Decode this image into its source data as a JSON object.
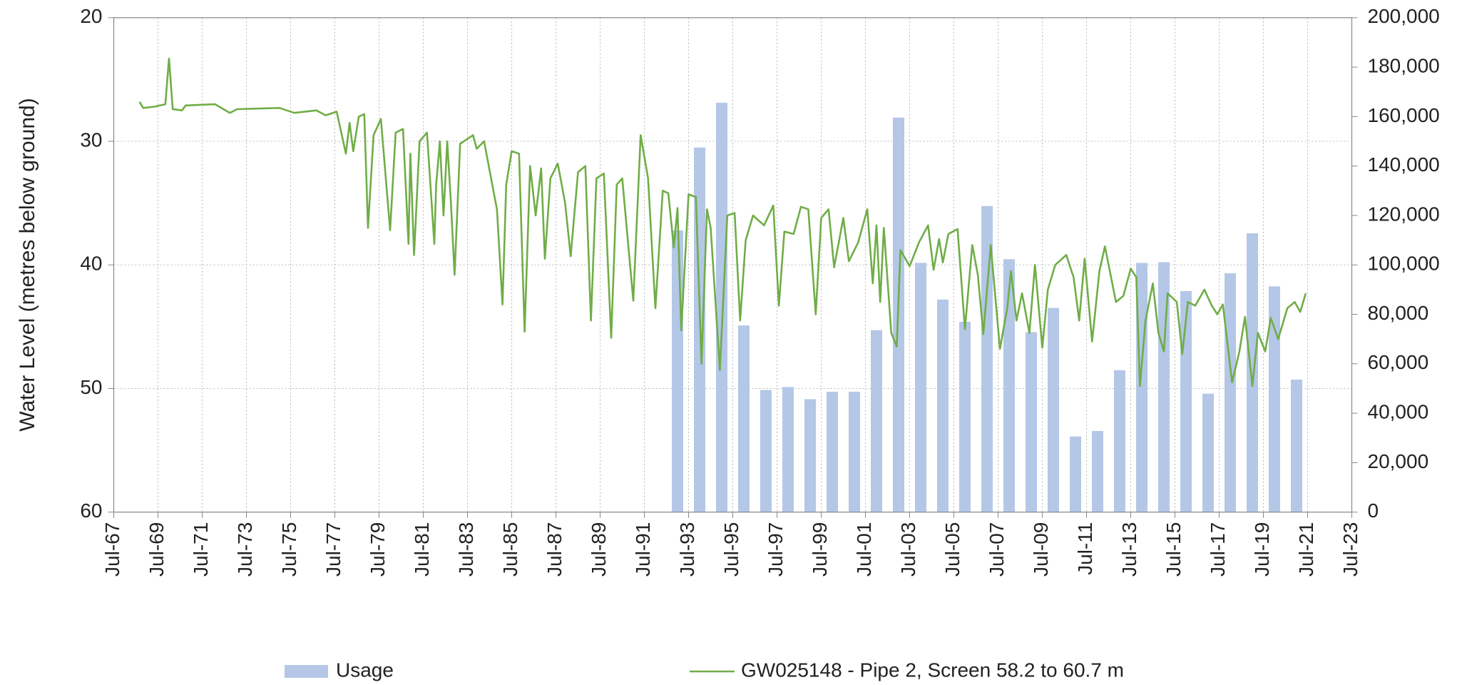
{
  "chart_data": {
    "type": "combo",
    "y_label": "Water Level (metres below ground)",
    "xlim": [
      "1967-07",
      "2023-07"
    ],
    "xticks": [
      {
        "value": "1967-07",
        "label": "Jul-67"
      },
      {
        "value": "1969-07",
        "label": "Jul-69"
      },
      {
        "value": "1971-07",
        "label": "Jul-71"
      },
      {
        "value": "1973-07",
        "label": "Jul-73"
      },
      {
        "value": "1975-07",
        "label": "Jul-75"
      },
      {
        "value": "1977-07",
        "label": "Jul-77"
      },
      {
        "value": "1979-07",
        "label": "Jul-79"
      },
      {
        "value": "1981-07",
        "label": "Jul-81"
      },
      {
        "value": "1983-07",
        "label": "Jul-83"
      },
      {
        "value": "1985-07",
        "label": "Jul-85"
      },
      {
        "value": "1987-07",
        "label": "Jul-87"
      },
      {
        "value": "1989-07",
        "label": "Jul-89"
      },
      {
        "value": "1991-07",
        "label": "Jul-91"
      },
      {
        "value": "1993-07",
        "label": "Jul-93"
      },
      {
        "value": "1995-07",
        "label": "Jul-95"
      },
      {
        "value": "1997-07",
        "label": "Jul-97"
      },
      {
        "value": "1999-07",
        "label": "Jul-99"
      },
      {
        "value": "2001-07",
        "label": "Jul-01"
      },
      {
        "value": "2003-07",
        "label": "Jul-03"
      },
      {
        "value": "2005-07",
        "label": "Jul-05"
      },
      {
        "value": "2007-07",
        "label": "Jul-07"
      },
      {
        "value": "2009-07",
        "label": "Jul-09"
      },
      {
        "value": "2011-07",
        "label": "Jul-11"
      },
      {
        "value": "2013-07",
        "label": "Jul-13"
      },
      {
        "value": "2015-07",
        "label": "Jul-15"
      },
      {
        "value": "2017-07",
        "label": "Jul-17"
      },
      {
        "value": "2019-07",
        "label": "Jul-19"
      },
      {
        "value": "2021-07",
        "label": "Jul-21"
      },
      {
        "value": "2023-07",
        "label": "Jul-23"
      }
    ],
    "ylim": [
      20,
      60
    ],
    "y_reversed": true,
    "yticks": [
      20,
      30,
      40,
      50,
      60
    ],
    "y2lim": [
      0,
      200000
    ],
    "y2ticks": [
      0,
      {
        "value": 20000,
        "label": "20,000"
      },
      {
        "value": 40000,
        "label": "40,000"
      },
      {
        "value": 60000,
        "label": "60,000"
      },
      {
        "value": 80000,
        "label": "80,000"
      },
      {
        "value": 100000,
        "label": "100,000"
      },
      {
        "value": 120000,
        "label": "120,000"
      },
      {
        "value": 140000,
        "label": "140,000"
      },
      {
        "value": 160000,
        "label": "160,000"
      },
      {
        "value": 180000,
        "label": "180,000"
      },
      {
        "value": 200000,
        "label": "200,000"
      }
    ],
    "grid": true,
    "legend": "bottom",
    "series": [
      {
        "name": "Usage",
        "type": "bar",
        "axis": "y2",
        "color": "#b4c7e7",
        "x": [
          "1993-01",
          "1994-01",
          "1995-01",
          "1996-01",
          "1997-01",
          "1998-01",
          "1999-01",
          "2000-01",
          "2001-01",
          "2002-01",
          "2003-01",
          "2004-01",
          "2005-01",
          "2006-01",
          "2007-01",
          "2008-01",
          "2009-01",
          "2010-01",
          "2011-01",
          "2012-01",
          "2013-01",
          "2014-01",
          "2015-01",
          "2016-01",
          "2017-01",
          "2018-01",
          "2019-01",
          "2020-01",
          "2021-01"
        ],
        "values": [
          114000,
          147500,
          165600,
          75500,
          49400,
          50600,
          45700,
          48700,
          48700,
          73600,
          159600,
          100800,
          86000,
          77000,
          123800,
          102300,
          72800,
          82600,
          30600,
          32800,
          57400,
          100800,
          101100,
          89400,
          47900,
          96600,
          112800,
          91300,
          53600
        ]
      },
      {
        "name": "GW025148 - Pipe 2, Screen 58.2 to 60.7 m",
        "type": "line",
        "axis": "y",
        "color": "#70ad47",
        "x": [
          "1968-09",
          "1968-11",
          "1969-05",
          "1969-11",
          "1970-01",
          "1970-03",
          "1970-08",
          "1970-10",
          "1972-02",
          "1972-10",
          "1973-02",
          "1975-01",
          "1975-09",
          "1976-09",
          "1977-02",
          "1977-08",
          "1978-01",
          "1978-03",
          "1978-05",
          "1978-08",
          "1978-11",
          "1979-01",
          "1979-04",
          "1979-08",
          "1980-01",
          "1980-04",
          "1980-08",
          "1980-11",
          "1980-12",
          "1981-02",
          "1981-05",
          "1981-09",
          "1982-01",
          "1982-02",
          "1982-04",
          "1982-06",
          "1982-08",
          "1982-10",
          "1982-12",
          "1983-03",
          "1983-10",
          "1983-12",
          "1984-04",
          "1984-11",
          "1985-02",
          "1985-04",
          "1985-07",
          "1985-11",
          "1986-02",
          "1986-05",
          "1986-08",
          "1986-11",
          "1987-01",
          "1987-04",
          "1987-08",
          "1987-12",
          "1988-03",
          "1988-07",
          "1988-11",
          "1989-02",
          "1989-05",
          "1989-09",
          "1990-01",
          "1990-04",
          "1990-07",
          "1991-01",
          "1991-05",
          "1991-09",
          "1992-01",
          "1992-05",
          "1992-08",
          "1992-11",
          "1993-01",
          "1993-03",
          "1993-07",
          "1993-11",
          "1994-02",
          "1994-05",
          "1994-07",
          "1994-12",
          "1995-04",
          "1995-08",
          "1995-11",
          "1996-02",
          "1996-06",
          "1996-12",
          "1997-05",
          "1997-08",
          "1997-11",
          "1998-04",
          "1998-08",
          "1998-12",
          "1999-04",
          "1999-07",
          "1999-11",
          "2000-02",
          "2000-07",
          "2000-10",
          "2001-03",
          "2001-08",
          "2001-11",
          "2002-01",
          "2002-03",
          "2002-05",
          "2002-09",
          "2002-12",
          "2003-02",
          "2003-07",
          "2003-12",
          "2004-05",
          "2004-08",
          "2004-11",
          "2005-01",
          "2005-04",
          "2005-09",
          "2006-01",
          "2006-05",
          "2006-08",
          "2006-11",
          "2007-03",
          "2007-08",
          "2007-12",
          "2008-02",
          "2008-05",
          "2008-08",
          "2008-12",
          "2009-03",
          "2009-07",
          "2009-10",
          "2010-02",
          "2010-08",
          "2010-12",
          "2011-03",
          "2011-06",
          "2011-10",
          "2012-02",
          "2012-05",
          "2012-11",
          "2013-03",
          "2013-07",
          "2013-10",
          "2013-12",
          "2014-03",
          "2014-07",
          "2014-10",
          "2015-01",
          "2015-03",
          "2015-08",
          "2015-11",
          "2016-02",
          "2016-06",
          "2016-11",
          "2017-03",
          "2017-06",
          "2017-09",
          "2018-02",
          "2018-06",
          "2018-09",
          "2019-01",
          "2019-04",
          "2019-08",
          "2019-11",
          "2020-03",
          "2020-08",
          "2020-12",
          "2021-03",
          "2021-06"
        ],
        "values": [
          26.8,
          27.3,
          27.2,
          27.0,
          23.3,
          27.4,
          27.5,
          27.1,
          27.0,
          27.7,
          27.4,
          27.3,
          27.7,
          27.5,
          27.9,
          27.6,
          31.0,
          28.5,
          30.8,
          28.0,
          27.8,
          37.0,
          29.5,
          28.2,
          37.2,
          29.3,
          29.0,
          38.3,
          31.0,
          39.2,
          30.0,
          29.3,
          38.3,
          33.5,
          30.0,
          36.0,
          30.0,
          35.0,
          40.8,
          30.2,
          29.5,
          30.6,
          30.0,
          35.5,
          43.2,
          33.5,
          30.8,
          31.0,
          45.4,
          32.0,
          36.0,
          32.2,
          39.5,
          33.0,
          31.8,
          35.0,
          39.3,
          32.5,
          32.0,
          44.5,
          33.0,
          32.6,
          45.9,
          33.5,
          33.0,
          42.9,
          29.5,
          33.0,
          43.5,
          34.0,
          34.2,
          38.6,
          35.4,
          45.3,
          34.3,
          34.5,
          48.0,
          35.5,
          37.0,
          48.5,
          36.0,
          35.8,
          44.5,
          38.0,
          36.0,
          36.8,
          35.2,
          43.3,
          37.3,
          37.5,
          35.3,
          35.5,
          44.0,
          36.2,
          35.5,
          40.2,
          36.2,
          39.7,
          38.2,
          35.5,
          41.5,
          36.8,
          43.0,
          37.0,
          45.5,
          46.6,
          38.8,
          40.1,
          38.2,
          36.8,
          40.4,
          37.9,
          39.8,
          37.5,
          37.1,
          45.2,
          38.4,
          40.8,
          45.6,
          38.4,
          46.8,
          43.5,
          40.5,
          44.5,
          42.3,
          45.5,
          40.0,
          46.7,
          42.0,
          40.0,
          39.2,
          41.0,
          44.5,
          39.5,
          46.2,
          40.5,
          38.5,
          43.0,
          42.5,
          40.3,
          41.0,
          49.8,
          44.5,
          41.5,
          45.5,
          47.0,
          42.3,
          43.0,
          47.2,
          43.0,
          43.3,
          42.0,
          43.3,
          44.0,
          43.2,
          49.5,
          47.0,
          44.2,
          49.8,
          45.5,
          47.0,
          44.3,
          46.0,
          43.5,
          43.0,
          43.8,
          42.3
        ]
      }
    ]
  }
}
